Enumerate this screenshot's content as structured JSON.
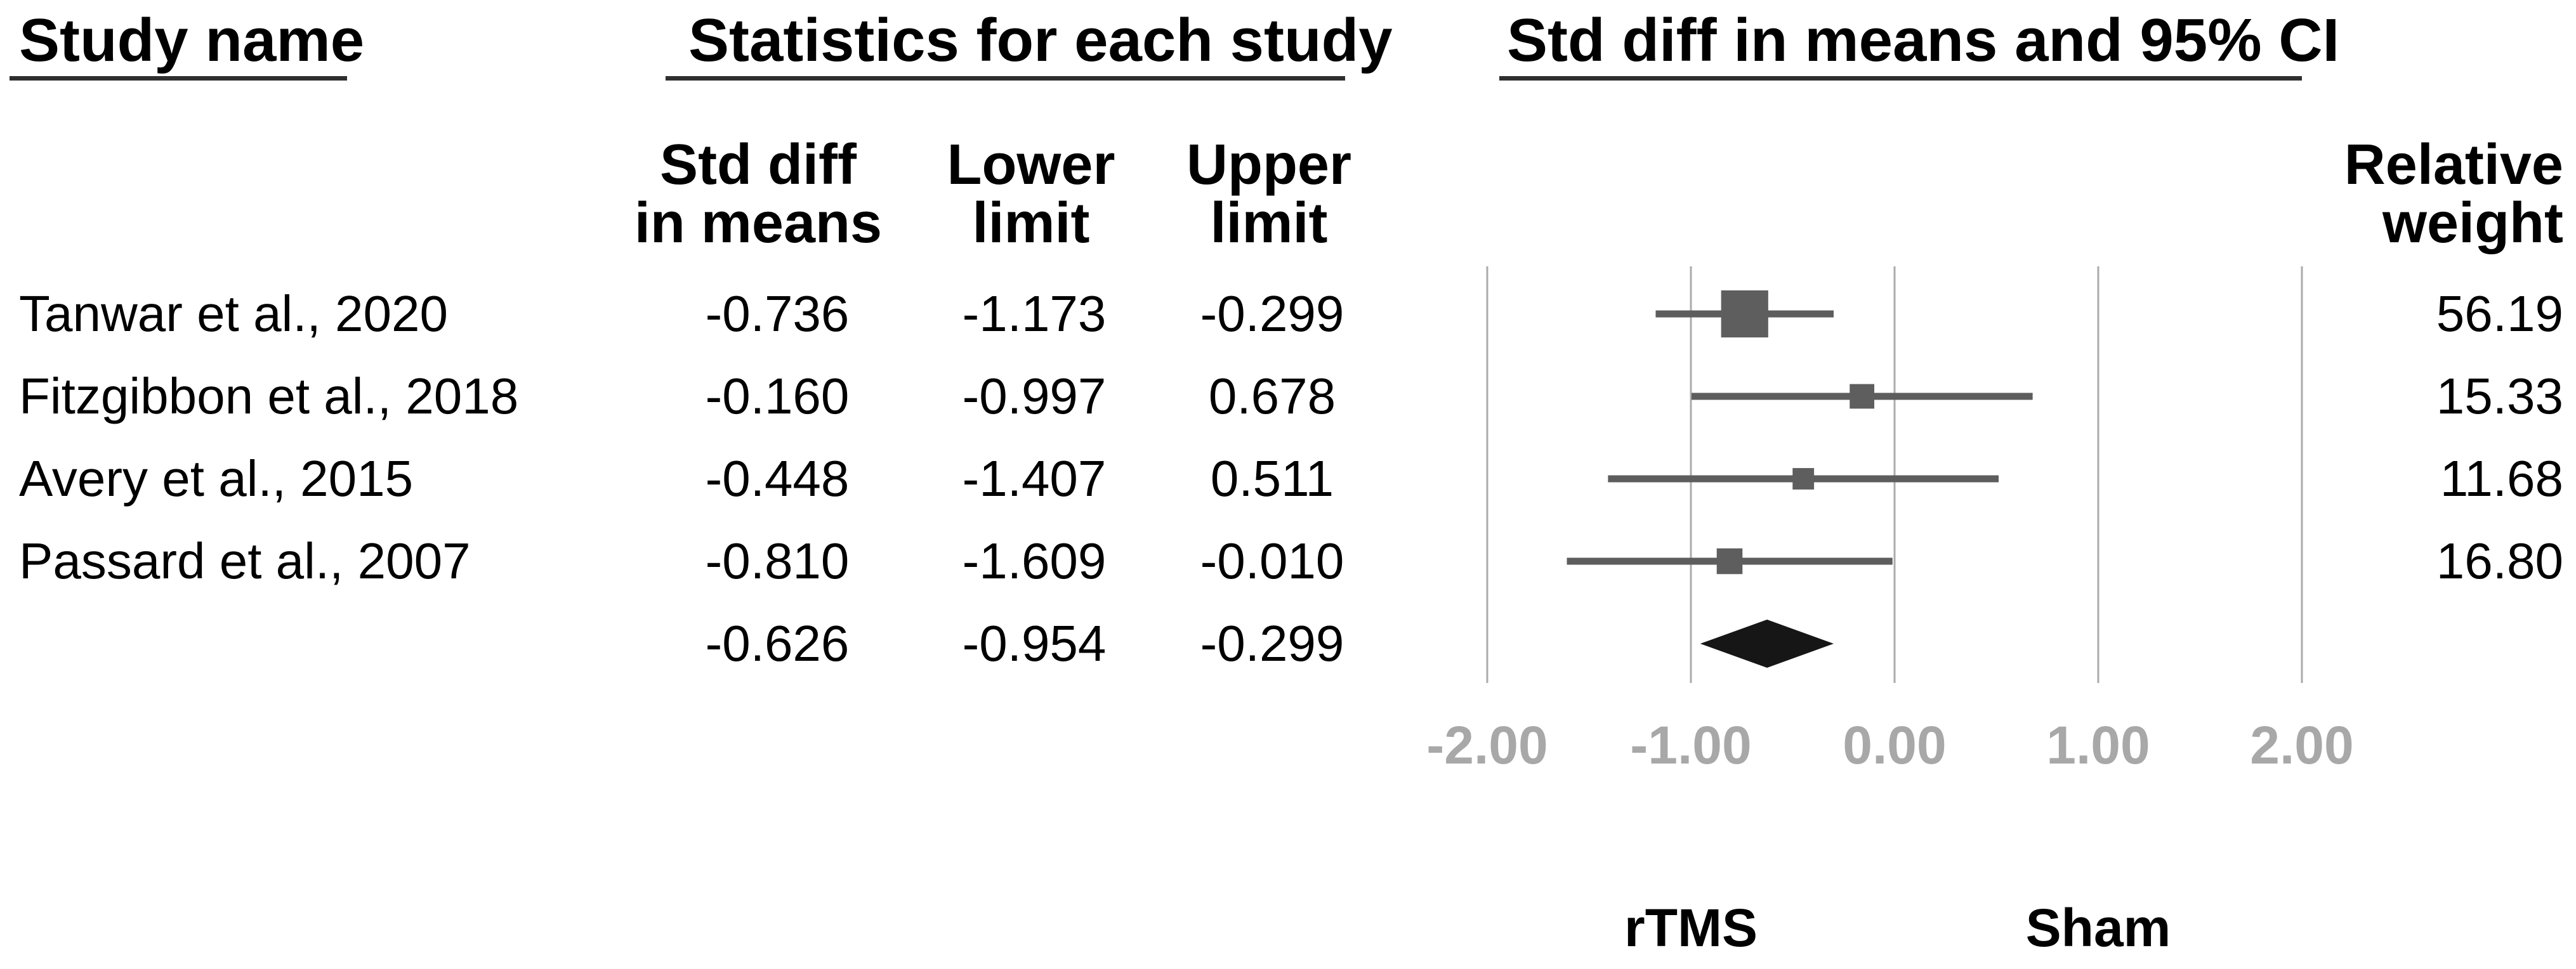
{
  "headers": {
    "study_name": "Study name",
    "statistics": "Statistics for each study",
    "plot_title": "Std diff in means and 95% CI"
  },
  "subheaders": {
    "std_diff_line1": "Std diff",
    "std_diff_line2": "in means",
    "lower_line1": "Lower",
    "lower_line2": "limit",
    "upper_line1": "Upper",
    "upper_line2": "limit",
    "weight_line1": "Relative",
    "weight_line2": "weight"
  },
  "chart_data": {
    "type": "forest",
    "effect_measure": "Std diff in means",
    "title": "Std diff in means and 95% CI",
    "studies": [
      {
        "name": "Tanwar et al., 2020",
        "std_diff": "-0.736",
        "lower": "-1.173",
        "upper": "-0.299",
        "weight": "56.19"
      },
      {
        "name": "Fitzgibbon et al., 2018",
        "std_diff": "-0.160",
        "lower": "-0.997",
        "upper": "0.678",
        "weight": "15.33"
      },
      {
        "name": "Avery et al., 2015",
        "std_diff": "-0.448",
        "lower": "-1.407",
        "upper": "0.511",
        "weight": "11.68"
      },
      {
        "name": "Passard et al., 2007",
        "std_diff": "-0.810",
        "lower": "-1.609",
        "upper": "-0.010",
        "weight": "16.80"
      }
    ],
    "overall": {
      "std_diff": "-0.626",
      "lower": "-0.954",
      "upper": "-0.299"
    },
    "axis": {
      "tick_labels": [
        "-2.00",
        "-1.00",
        "0.00",
        "1.00",
        "2.00"
      ],
      "tick_values": [
        -2,
        -1,
        0,
        1,
        2
      ],
      "xlim": [
        -2.3,
        2.3
      ],
      "grid": true
    },
    "footer_labels": {
      "left": "rTMS",
      "right": "Sham"
    },
    "colors": {
      "marker": "#5e5e5e",
      "ci_line": "#5d5d5d",
      "diamond": "#161616",
      "gridline": "#ababab",
      "axis_label": "#a8a8a8",
      "text": "#000000",
      "underline": "#2f2f2f"
    }
  }
}
